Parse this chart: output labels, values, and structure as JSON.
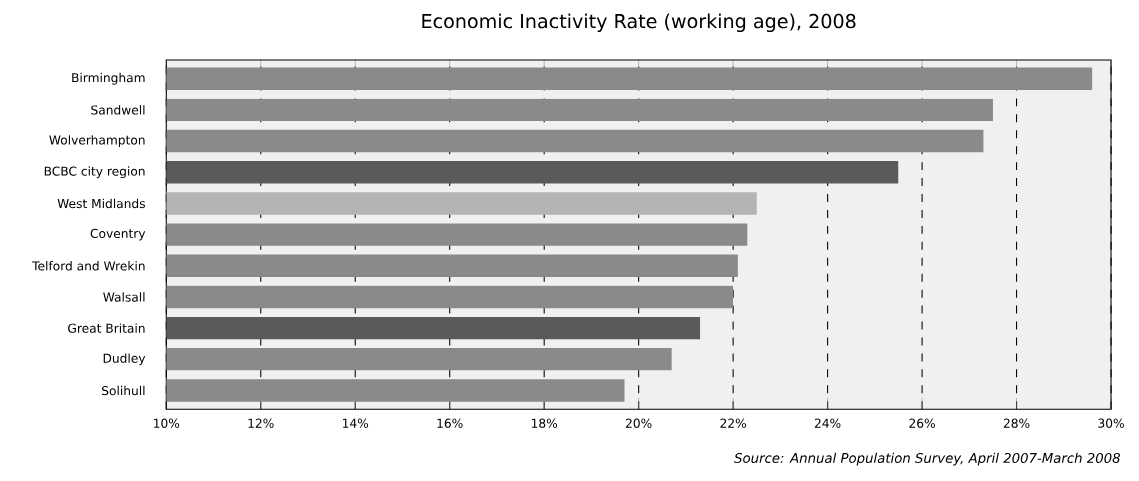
{
  "chart_data": {
    "type": "bar",
    "orientation": "horizontal",
    "title": "Economic Inactivity Rate (working age), 2008",
    "categories": [
      "Birmingham",
      "Sandwell",
      "Wolverhampton",
      "BCBC city region",
      "West Midlands",
      "Coventry",
      "Telford and Wrekin",
      "Walsall",
      "Great Britain",
      "Dudley",
      "Solihull"
    ],
    "values": [
      29.6,
      27.5,
      27.3,
      25.5,
      22.5,
      22.3,
      22.1,
      22.0,
      21.3,
      20.7,
      19.7
    ],
    "colors": [
      "#8a8a8a",
      "#8a8a8a",
      "#8a8a8a",
      "#5a5a5a",
      "#b4b4b4",
      "#8a8a8a",
      "#8a8a8a",
      "#8a8a8a",
      "#5a5a5a",
      "#8a8a8a",
      "#8a8a8a"
    ],
    "xlim": [
      10,
      30
    ],
    "xticks": [
      {
        "value": 10,
        "label": "10%"
      },
      {
        "value": 12,
        "label": "12%"
      },
      {
        "value": 14,
        "label": "14%"
      },
      {
        "value": 16,
        "label": "16%"
      },
      {
        "value": 18,
        "label": "18%"
      },
      {
        "value": 20,
        "label": "20%"
      },
      {
        "value": 22,
        "label": "22%"
      },
      {
        "value": 24,
        "label": "24%"
      },
      {
        "value": 26,
        "label": "26%"
      },
      {
        "value": 28,
        "label": "28%"
      },
      {
        "value": 30,
        "label": "30%"
      }
    ],
    "grid": "x",
    "annotations": [
      "Source: Annual Population Survey, April 2007-March 2008"
    ]
  }
}
